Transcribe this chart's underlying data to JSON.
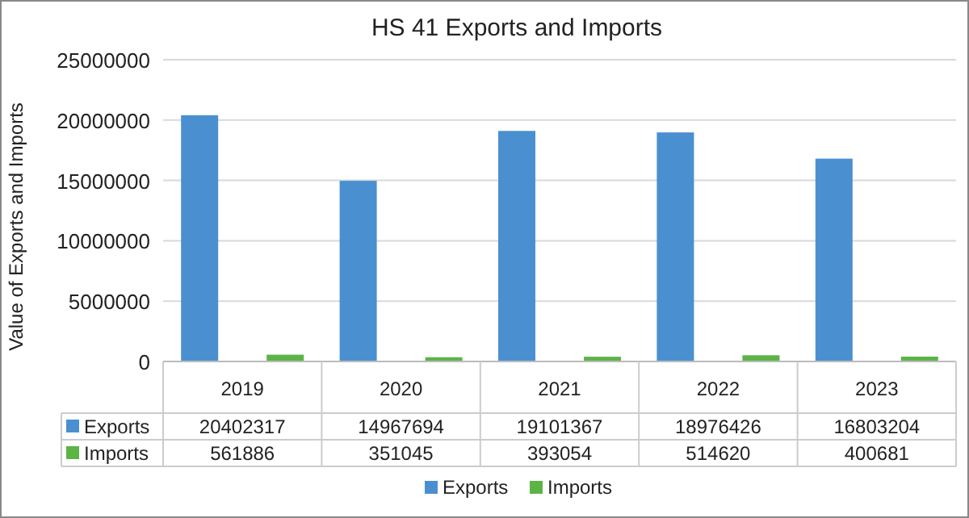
{
  "chart_data": {
    "type": "bar",
    "title": "HS 41 Exports and Imports",
    "ylabel": "Value of Exports and Imports",
    "categories": [
      "2019",
      "2020",
      "2021",
      "2022",
      "2023"
    ],
    "series": [
      {
        "name": "Exports",
        "color": "#4a90d0",
        "values": [
          20402317,
          14967694,
          19101367,
          18976426,
          16803204
        ]
      },
      {
        "name": "Imports",
        "color": "#5cb446",
        "values": [
          561886,
          351045,
          393054,
          514620,
          400681
        ]
      }
    ],
    "ylim": [
      0,
      25000000
    ],
    "yticks": [
      0,
      5000000,
      10000000,
      15000000,
      20000000,
      25000000
    ],
    "grid": "y",
    "legend": "bottom",
    "data_labels": true
  }
}
